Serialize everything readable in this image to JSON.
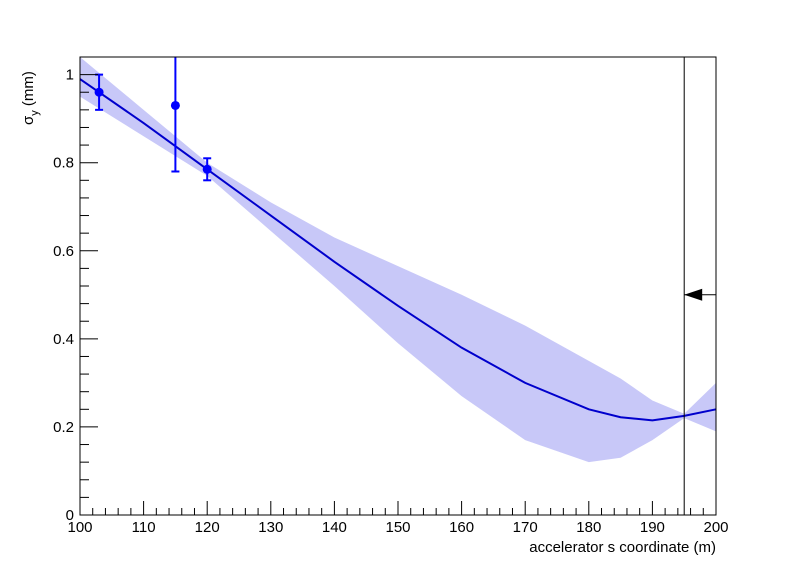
{
  "chart_data": {
    "type": "scatter",
    "xlabel": "accelerator s coordinate (m)",
    "ylabel": {
      "symbol": "σ",
      "subscript": "y",
      "unit": "(mm)"
    },
    "xlim": [
      100,
      200
    ],
    "xticks": [
      100,
      110,
      120,
      130,
      140,
      150,
      160,
      170,
      180,
      190,
      200
    ],
    "ylim": [
      0,
      1.04
    ],
    "yticks": [
      0,
      0.2,
      0.4,
      0.6,
      0.8,
      1
    ],
    "points": {
      "color": "#0000ff",
      "x": [
        103,
        115,
        120
      ],
      "values": [
        0.96,
        0.93,
        0.785
      ],
      "errors": [
        0.04,
        0.15,
        0.025
      ]
    },
    "fit": {
      "color": "#0000cc",
      "x": [
        100,
        110,
        120,
        130,
        140,
        150,
        160,
        170,
        180,
        185,
        190,
        195,
        200
      ],
      "values": [
        0.99,
        0.89,
        0.785,
        0.68,
        0.575,
        0.475,
        0.38,
        0.3,
        0.24,
        0.222,
        0.215,
        0.225,
        0.24
      ]
    },
    "band": {
      "color": "#c8c8f8",
      "x": [
        100,
        110,
        120,
        130,
        140,
        150,
        160,
        170,
        180,
        185,
        190,
        195,
        200
      ],
      "upper": [
        1.04,
        0.92,
        0.8,
        0.71,
        0.63,
        0.565,
        0.5,
        0.43,
        0.35,
        0.31,
        0.26,
        0.23,
        0.3
      ],
      "lower": [
        0.95,
        0.86,
        0.77,
        0.645,
        0.52,
        0.39,
        0.27,
        0.17,
        0.12,
        0.13,
        0.17,
        0.22,
        0.19
      ]
    },
    "marker": {
      "x": 195,
      "arrow_y": 0.5
    }
  }
}
